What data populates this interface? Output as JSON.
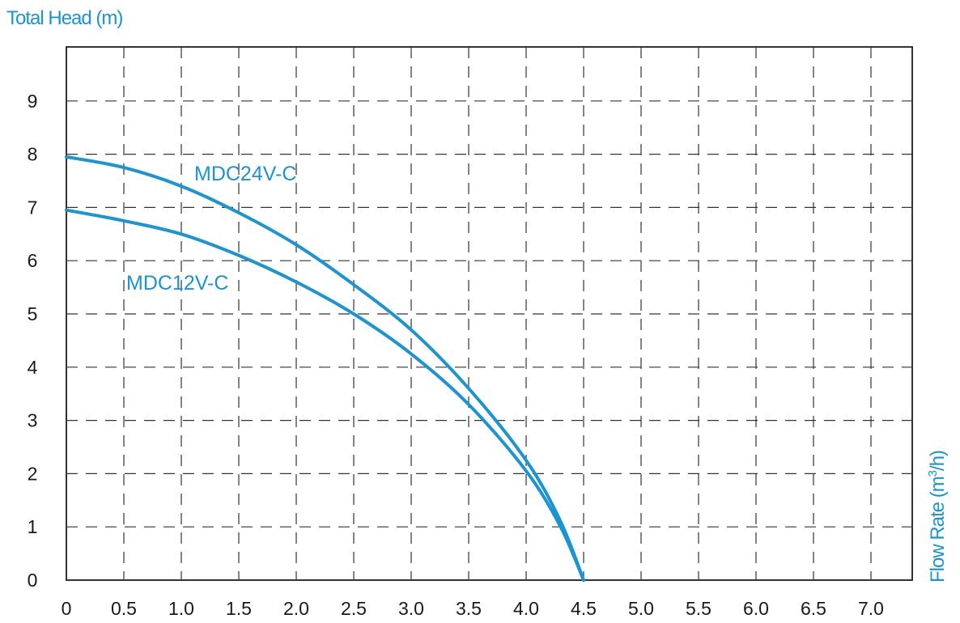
{
  "chart_data": {
    "type": "line",
    "ylabel": "Total Head (m)",
    "xlabel_main": "Flow Rate (m",
    "xlabel_sup": "3",
    "xlabel_tail": "/h)",
    "xlim": [
      0,
      7.5
    ],
    "ylim": [
      0,
      10
    ],
    "x_ticks": [
      "0",
      "0.5",
      "1.0",
      "1.5",
      "2.0",
      "2.5",
      "3.0",
      "3.5",
      "4.0",
      "4.5",
      "5.0",
      "5.5",
      "6.0",
      "6.5",
      "7.0"
    ],
    "y_ticks": [
      "0",
      "1",
      "2",
      "3",
      "4",
      "5",
      "6",
      "7",
      "8",
      "9"
    ],
    "grid": true,
    "series": [
      {
        "name": "MDC24V-C",
        "color": "#1a94d2",
        "x": [
          0,
          0.5,
          1.0,
          1.5,
          2.0,
          2.5,
          3.0,
          3.5,
          4.0,
          4.3,
          4.5
        ],
        "y": [
          7.95,
          7.75,
          7.4,
          6.9,
          6.3,
          5.55,
          4.7,
          3.6,
          2.25,
          1.1,
          0
        ]
      },
      {
        "name": "MDC12V-C",
        "color": "#1a94d2",
        "x": [
          0,
          0.5,
          1.0,
          1.5,
          2.0,
          2.5,
          3.0,
          3.5,
          4.0,
          4.3,
          4.5
        ],
        "y": [
          6.95,
          6.75,
          6.5,
          6.1,
          5.6,
          5.0,
          4.25,
          3.3,
          2.05,
          1.0,
          0
        ]
      }
    ]
  }
}
